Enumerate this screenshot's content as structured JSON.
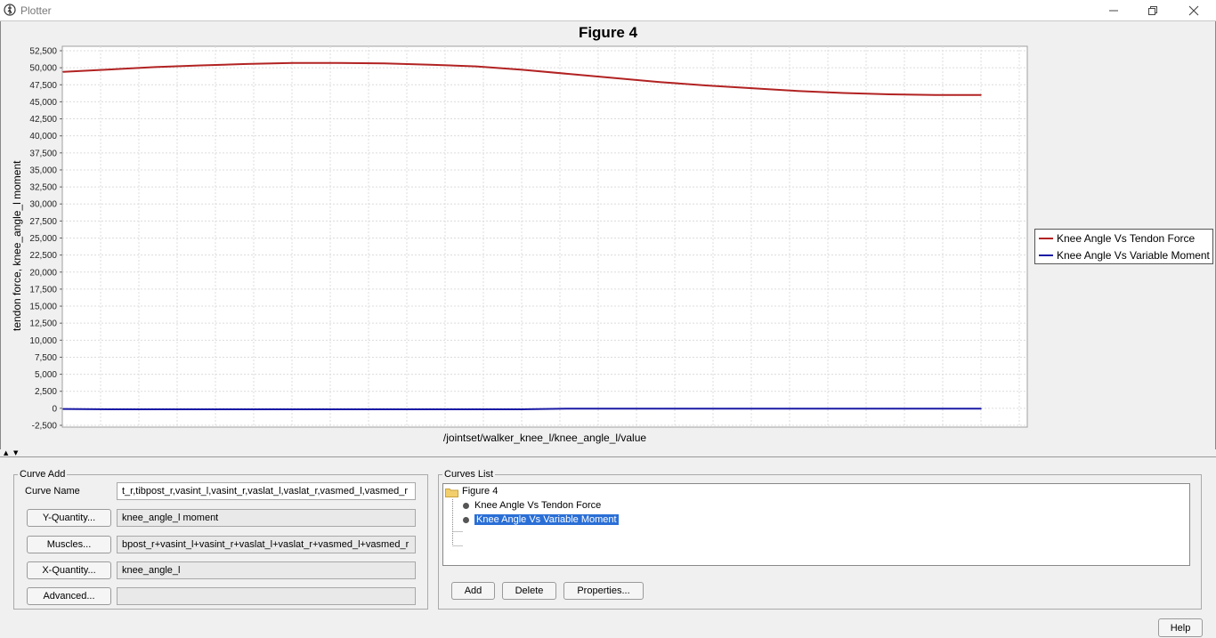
{
  "window": {
    "title": "Plotter",
    "controls": {
      "minimize_icon": "minimize-icon",
      "restore_icon": "restore-icon",
      "close_icon": "close-icon"
    }
  },
  "figure": {
    "title": "Figure 4",
    "ylabel": "tendon force, knee_angle_l moment",
    "xlabel": "/jointset/walker_knee_l/knee_angle_l/value",
    "legend": [
      {
        "label": "Knee Angle Vs Tendon Force",
        "color": "#b22222"
      },
      {
        "label": "Knee Angle Vs Variable Moment",
        "color": "#1a1aa6"
      }
    ]
  },
  "chart_data": {
    "type": "line",
    "title": "Figure 4",
    "xlabel": "/jointset/walker_knee_l/knee_angle_l/value",
    "ylabel": "tendon force, knee_angle_l moment",
    "ylim": [
      -2500,
      52500
    ],
    "yticks": [
      "52,500",
      "50,000",
      "47,500",
      "45,000",
      "42,500",
      "40,000",
      "37,500",
      "35,000",
      "32,500",
      "30,000",
      "27,500",
      "25,000",
      "22,500",
      "20,000",
      "17,500",
      "15,000",
      "12,500",
      "10,000",
      "7,500",
      "5,000",
      "2,500",
      "0",
      "-2,500"
    ],
    "grid": true,
    "legend_position": "right",
    "x": [
      0,
      5,
      10,
      15,
      20,
      25,
      30,
      35,
      40,
      45,
      50,
      55,
      60,
      65,
      70,
      75,
      80,
      85,
      90,
      95,
      100
    ],
    "series": [
      {
        "name": "Knee Angle Vs Tendon Force",
        "color": "#b22222",
        "values": [
          49400,
          49750,
          50100,
          50350,
          50550,
          50700,
          50700,
          50650,
          50450,
          50200,
          49700,
          49100,
          48500,
          47900,
          47400,
          47000,
          46600,
          46300,
          46100,
          46000,
          46000
        ]
      },
      {
        "name": "Knee Angle Vs Variable Moment",
        "color": "#1a1aa6",
        "values": [
          -100,
          -150,
          -150,
          -150,
          -150,
          -150,
          -150,
          -150,
          -150,
          -150,
          -150,
          -50,
          -50,
          -50,
          -50,
          -50,
          -50,
          -50,
          -50,
          -50,
          -50
        ]
      }
    ]
  },
  "curve_add": {
    "legend": "Curve Add",
    "curve_name_label": "Curve Name",
    "curve_name_value": "t_r,tibpost_r,vasint_l,vasint_r,vaslat_l,vaslat_r,vasmed_l,vasmed_r",
    "y_quantity_button": "Y-Quantity...",
    "y_quantity_value": "knee_angle_l moment",
    "muscles_button": "Muscles...",
    "muscles_value": "bpost_r+vasint_l+vasint_r+vaslat_l+vaslat_r+vasmed_l+vasmed_r",
    "x_quantity_button": "X-Quantity...",
    "x_quantity_value": "knee_angle_l",
    "advanced_button": "Advanced...",
    "advanced_value": ""
  },
  "curves_list": {
    "legend": "Curves List",
    "root": "Figure 4",
    "items": [
      "Knee Angle Vs Tendon Force",
      "Knee Angle Vs Variable Moment"
    ],
    "selected_index": 1,
    "add_button": "Add",
    "delete_button": "Delete",
    "properties_button": "Properties..."
  },
  "help_button": "Help"
}
